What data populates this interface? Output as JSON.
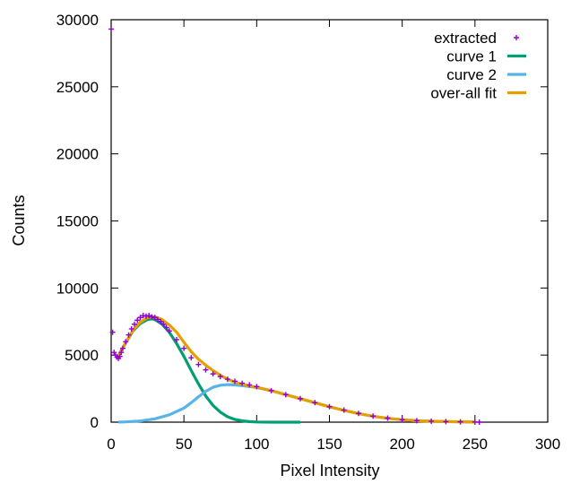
{
  "chart_data": {
    "type": "line",
    "title": "",
    "xlabel": "Pixel Intensity",
    "ylabel": "Counts",
    "xlim": [
      0,
      300
    ],
    "ylim": [
      0,
      30000
    ],
    "x_ticks": [
      0,
      50,
      100,
      150,
      200,
      250,
      300
    ],
    "y_ticks": [
      0,
      5000,
      10000,
      15000,
      20000,
      25000,
      30000
    ],
    "grid": false,
    "legend_position": "top-right",
    "series": [
      {
        "name": "extracted",
        "kind": "points",
        "marker": "plus",
        "color": "#9400d3",
        "x": [
          0,
          1,
          2,
          3,
          4,
          5,
          6,
          7,
          8,
          10,
          12,
          14,
          16,
          18,
          20,
          22,
          24,
          26,
          28,
          30,
          32,
          34,
          36,
          38,
          40,
          45,
          50,
          55,
          60,
          65,
          70,
          75,
          80,
          85,
          90,
          95,
          100,
          110,
          120,
          130,
          140,
          150,
          160,
          170,
          180,
          190,
          200,
          210,
          220,
          230,
          240,
          250,
          253
        ],
        "y": [
          29300,
          6700,
          5200,
          5000,
          4850,
          4750,
          4900,
          5200,
          5500,
          6000,
          6500,
          6950,
          7300,
          7600,
          7800,
          7950,
          7900,
          7950,
          7850,
          7800,
          7650,
          7500,
          7300,
          7050,
          6800,
          6150,
          5500,
          4800,
          4300,
          3900,
          3600,
          3400,
          3200,
          3050,
          2900,
          2780,
          2650,
          2350,
          2050,
          1750,
          1450,
          1150,
          900,
          650,
          450,
          300,
          180,
          110,
          70,
          40,
          25,
          10,
          0
        ]
      },
      {
        "name": "curve 1",
        "kind": "line",
        "color": "#009e73",
        "x": [
          5,
          10,
          15,
          20,
          25,
          28,
          30,
          35,
          40,
          45,
          50,
          55,
          60,
          65,
          70,
          75,
          80,
          85,
          90,
          95,
          100,
          110,
          120,
          130
        ],
        "y": [
          4950,
          5900,
          6800,
          7350,
          7650,
          7700,
          7650,
          7300,
          6700,
          5850,
          4900,
          3850,
          2850,
          1950,
          1250,
          750,
          400,
          200,
          100,
          40,
          15,
          0,
          0,
          0
        ]
      },
      {
        "name": "curve 2",
        "kind": "line",
        "color": "#56b4e9",
        "x": [
          5,
          10,
          20,
          30,
          40,
          50,
          55,
          60,
          65,
          70,
          75,
          80,
          85,
          90,
          95,
          100,
          110,
          120,
          130,
          140,
          150,
          160,
          170,
          180,
          190,
          200,
          210,
          220,
          230,
          240,
          250
        ],
        "y": [
          10,
          20,
          90,
          250,
          550,
          1050,
          1450,
          1900,
          2300,
          2600,
          2750,
          2800,
          2780,
          2720,
          2650,
          2580,
          2350,
          2050,
          1750,
          1450,
          1150,
          880,
          640,
          440,
          290,
          180,
          110,
          70,
          40,
          25,
          10
        ]
      },
      {
        "name": "over-all fit",
        "kind": "line",
        "color": "#e69f00",
        "x": [
          5,
          10,
          15,
          20,
          25,
          28,
          30,
          35,
          40,
          45,
          50,
          55,
          60,
          65,
          70,
          75,
          80,
          85,
          90,
          95,
          100,
          110,
          120,
          130,
          140,
          150,
          160,
          170,
          180,
          190,
          200,
          210,
          220,
          230,
          240,
          250
        ],
        "y": [
          4960,
          5920,
          6850,
          7450,
          7800,
          7850,
          7850,
          7650,
          7250,
          6700,
          5950,
          5250,
          4700,
          4250,
          3850,
          3500,
          3200,
          2980,
          2820,
          2690,
          2600,
          2350,
          2050,
          1750,
          1450,
          1150,
          880,
          640,
          440,
          290,
          180,
          110,
          70,
          40,
          25,
          10
        ]
      }
    ]
  }
}
